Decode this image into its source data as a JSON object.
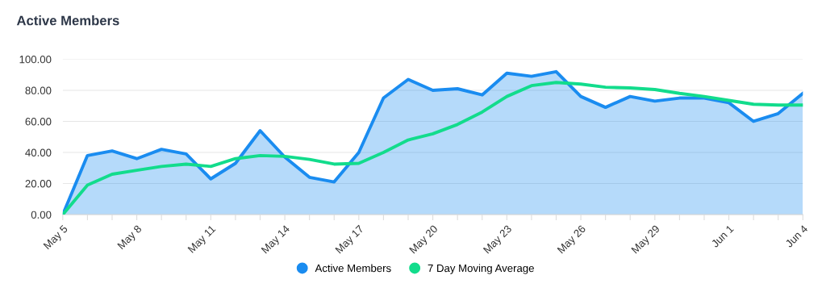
{
  "chart_data": {
    "type": "line",
    "title": "Active Members",
    "categories": [
      "May 5",
      null,
      null,
      "May 8",
      null,
      null,
      "May 11",
      null,
      null,
      "May 14",
      null,
      null,
      "May 17",
      null,
      null,
      "May 20",
      null,
      null,
      "May 23",
      null,
      null,
      "May 26",
      null,
      null,
      "May 29",
      null,
      null,
      "Jun 1",
      null,
      null,
      "Jun 4"
    ],
    "series": [
      {
        "name": "Active Members",
        "type": "area",
        "color": "#1a8cf0",
        "values": [
          0,
          38,
          41,
          36,
          42,
          39,
          23,
          33,
          54,
          37,
          24,
          21,
          40,
          75,
          87,
          80,
          81,
          77,
          91,
          89,
          92,
          76,
          69,
          76,
          73,
          75,
          75,
          72,
          60,
          65,
          78
        ]
      },
      {
        "name": "7 Day Moving Average",
        "color": "#12dc8c",
        "values": [
          0,
          19,
          26,
          28.5,
          31,
          32.5,
          31,
          36,
          38,
          37.5,
          35.5,
          32.5,
          33,
          40,
          48,
          52,
          58,
          66,
          76,
          83,
          85,
          84,
          82,
          81.5,
          80.5,
          78,
          76,
          73.5,
          71,
          70.5,
          70.5
        ]
      }
    ],
    "ylim": [
      0,
      100
    ],
    "yticks": [
      {
        "value": 0,
        "label": "0.00"
      },
      {
        "value": 20,
        "label": "20.00"
      },
      {
        "value": 40,
        "label": "40.00"
      },
      {
        "value": 60,
        "label": "60.00"
      },
      {
        "value": 80,
        "label": "80.00"
      },
      {
        "value": 100,
        "label": "100.00"
      }
    ],
    "grid": "y",
    "legend": "bottom",
    "marker": "none",
    "line_style": "solid"
  }
}
